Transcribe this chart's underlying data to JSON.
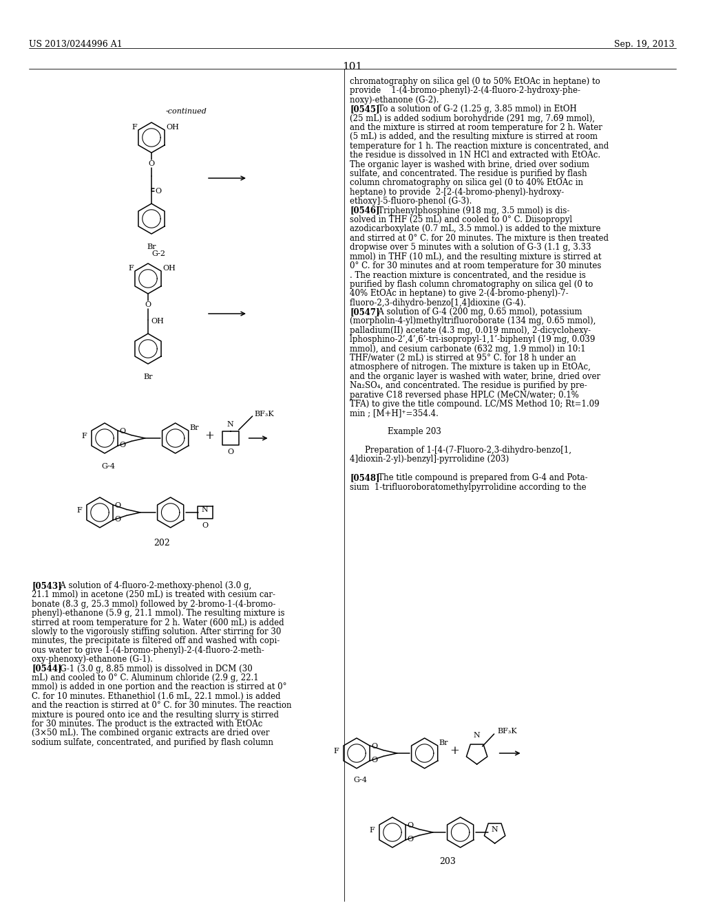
{
  "page_header_left": "US 2013/0244996 A1",
  "page_header_right": "Sep. 19, 2013",
  "page_number": "101",
  "background_color": "#ffffff",
  "right_column_text": [
    "chromatography on silica gel (0 to 50% EtOAc in heptane) to",
    "provide    1-(4-bromo-phenyl)-2-(4-fluoro-2-hydroxy-phe-",
    "noxy)-ethanone (G-2).",
    "[0545]   To a solution of G-2 (1.25 g, 3.85 mmol) in EtOH",
    "(25 mL) is added sodium borohydride (291 mg, 7.69 mmol),",
    "and the mixture is stirred at room temperature for 2 h. Water",
    "(5 mL) is added, and the resulting mixture is stirred at room",
    "temperature for 1 h. The reaction mixture is concentrated, and",
    "the residue is dissolved in 1N HCl and extracted with EtOAc.",
    "The organic layer is washed with brine, dried over sodium",
    "sulfate, and concentrated. The residue is purified by flash",
    "column chromatography on silica gel (0 to 40% EtOAc in",
    "heptane) to provide  2-[2-(4-bromo-phenyl)-hydroxy-",
    "ethoxy]-5-fluoro-phenol (G-3).",
    "[0546]   Triphenylphosphine (918 mg, 3.5 mmol) is dis-",
    "solved in THF (25 mL) and cooled to 0° C. Diisopropyl",
    "azodicarboxylate (0.7 mL, 3.5 mmol.) is added to the mixture",
    "and stirred at 0° C. for 20 minutes. The mixture is then treated",
    "dropwise over 5 minutes with a solution of G-3 (1.1 g, 3.33",
    "mmol) in THF (10 mL), and the resulting mixture is stirred at",
    "0° C. for 30 minutes and at room temperature for 30 minutes",
    ". The reaction mixture is concentrated, and the residue is",
    "purified by flash column chromatography on silica gel (0 to",
    "40% EtOAc in heptane) to give 2-(4-bromo-phenyl)-7-",
    "fluoro-2,3-dihydro-benzo[1,4]dioxine (G-4).",
    "[0547]   A solution of G-4 (200 mg, 0.65 mmol), potassium",
    "(morpholin-4-yl)methyltrifluoroborate (134 mg, 0.65 mmol),",
    "palladium(II) acetate (4.3 mg, 0.019 mmol), 2-dicyclohexy-",
    "lphosphino-2’,4’,6’-tri-isopropyl-1,1’-biphenyl (19 mg, 0.039",
    "mmol), and cesium carbonate (632 mg, 1.9 mmol) in 10:1",
    "THF/water (2 mL) is stirred at 95° C. for 18 h under an",
    "atmosphere of nitrogen. The mixture is taken up in EtOAc,",
    "and the organic layer is washed with water, brine, dried over",
    "Na₂SO₄, and concentrated. The residue is purified by pre-",
    "parative C18 reversed phase HPLC (MeCN/water; 0.1%",
    "TFA) to give the title compound. LC/MS Method 10; Rt=1.09",
    "min ; [M+H]⁺=354.4.",
    "",
    "Example 203",
    "",
    "Preparation of 1-[4-(7-Fluoro-2,3-dihydro-benzo[1,",
    "4]dioxin-2-yl)-benzyl]-pyrrolidine (203)",
    "",
    "[0548]   The title compound is prepared from G-4 and Pota-",
    "sium  1-trifluoroboratomethylpyrrolidine according to the"
  ],
  "bottom_left_text": [
    "[0543]   A solution of 4-fluoro-2-methoxy-phenol (3.0 g,",
    "21.1 mmol) in acetone (250 mL) is treated with cesium car-",
    "bonate (8.3 g, 25.3 mmol) followed by 2-bromo-1-(4-bromo-",
    "phenyl)-ethanone (5.9 g, 21.1 mmol). The resulting mixture is",
    "stirred at room temperature for 2 h. Water (600 mL) is added",
    "slowly to the vigorously stiffing solution. After stirring for 30",
    "minutes, the precipitate is filtered off and washed with copi-",
    "ous water to give 1-(4-bromo-phenyl)-2-(4-fluoro-2-meth-",
    "oxy-phenoxy)-ethanone (G-1).",
    "[0544]   G-1 (3.0 g, 8.85 mmol) is dissolved in DCM (30",
    "mL) and cooled to 0° C. Aluminum chloride (2.9 g, 22.1",
    "mmol) is added in one portion and the reaction is stirred at 0°",
    "C. for 10 minutes. Ethanethiol (1.6 mL, 22.1 mmol.) is added",
    "and the reaction is stirred at 0° C. for 30 minutes. The reaction",
    "mixture is poured onto ice and the resulting slurry is stirred",
    "for 30 minutes. The product is the extracted with EtOAc",
    "(3×50 mL). The combined organic extracts are dried over",
    "sodium sulfate, concentrated, and purified by flash column"
  ]
}
